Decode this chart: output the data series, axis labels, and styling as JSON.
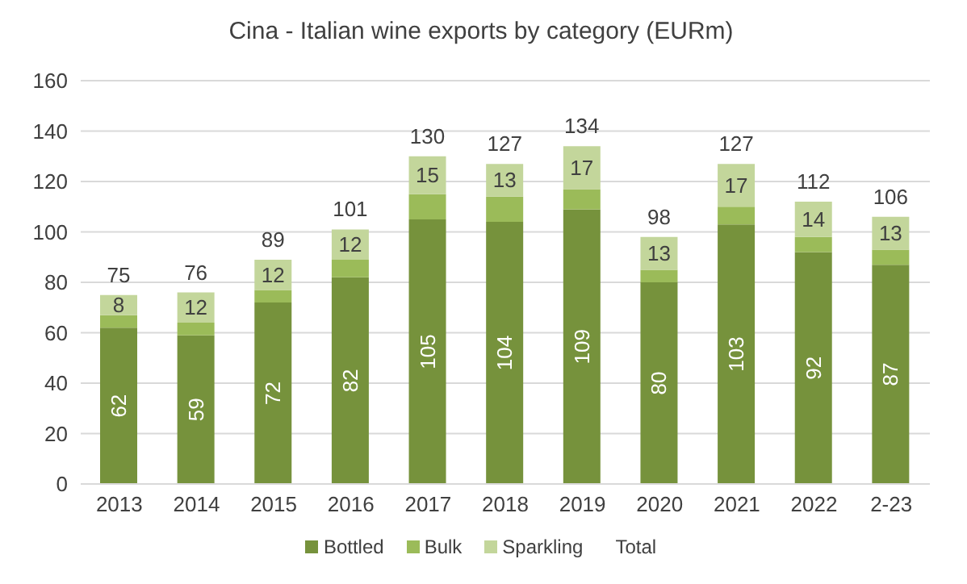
{
  "chart_data": {
    "type": "bar",
    "stacked": true,
    "title": "Cina - Italian wine exports by category (EURm)",
    "categories": [
      "2013",
      "2014",
      "2015",
      "2016",
      "2017",
      "2018",
      "2019",
      "2020",
      "2021",
      "2022",
      "2-23"
    ],
    "series": [
      {
        "name": "Bottled",
        "color": "#76923c",
        "values": [
          62,
          59,
          72,
          82,
          105,
          104,
          109,
          80,
          103,
          92,
          87
        ],
        "value_labels": [
          "62",
          "59",
          "72",
          "82",
          "105",
          "104",
          "109",
          "80",
          "103",
          "92",
          "87"
        ]
      },
      {
        "name": "Bulk",
        "color": "#9bbb59",
        "values": [
          5,
          5,
          5,
          7,
          10,
          10,
          8,
          5,
          7,
          6,
          6
        ]
      },
      {
        "name": "Sparkling",
        "color": "#c3d69b",
        "values": [
          8,
          12,
          12,
          12,
          15,
          13,
          17,
          13,
          17,
          14,
          13
        ],
        "value_labels": [
          "8",
          "12",
          "12",
          "12",
          "15",
          "13",
          "17",
          "13",
          "17",
          "14",
          "13"
        ]
      }
    ],
    "totals": [
      "75",
      "76",
      "89",
      "101",
      "130",
      "127",
      "134",
      "98",
      "127",
      "112",
      "106"
    ],
    "ylim": [
      0,
      160
    ],
    "yticks": [
      0,
      20,
      40,
      60,
      80,
      100,
      120,
      140,
      160
    ],
    "grid": "y",
    "legend": "bottom",
    "annotations": [
      "Total"
    ]
  }
}
